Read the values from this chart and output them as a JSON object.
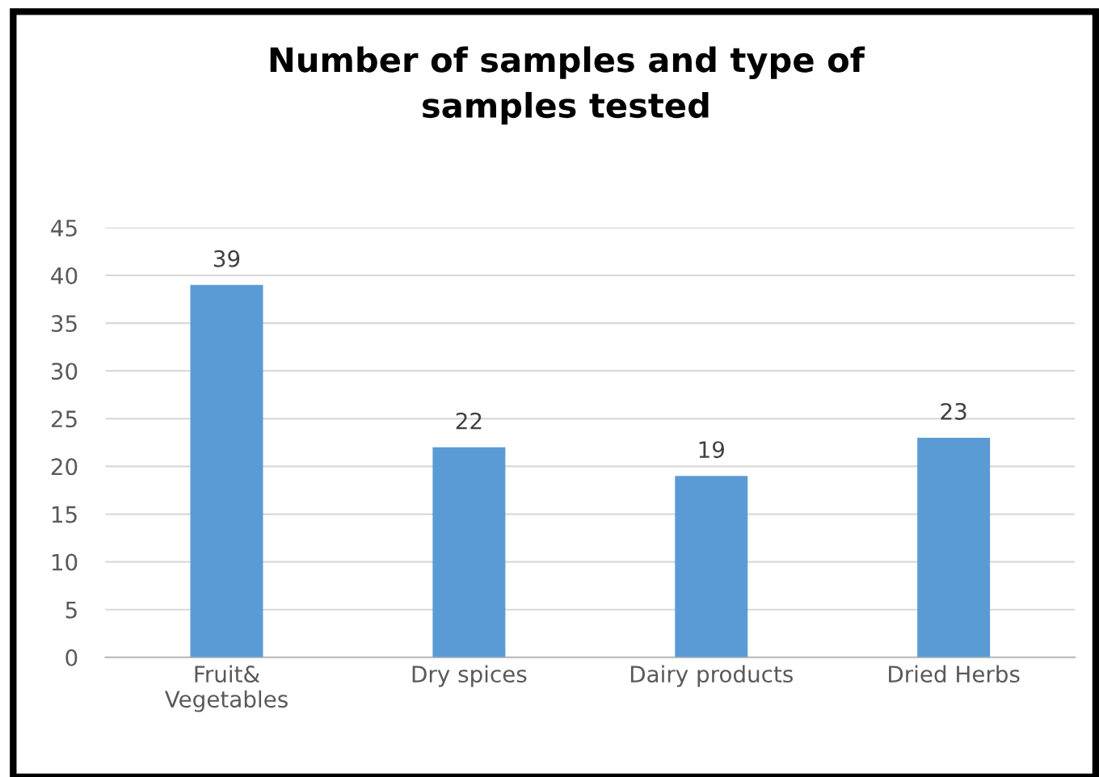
{
  "chart_data": {
    "type": "bar",
    "title": "Number of samples and type of\nsamples tested",
    "categories": [
      "Fruit&\nVegetables",
      "Dry spices",
      "Dairy products",
      "Dried Herbs"
    ],
    "values": [
      39,
      22,
      19,
      23
    ],
    "color": "#5b9bd5",
    "ylim": [
      0,
      45
    ],
    "yticks": [
      0,
      5,
      10,
      15,
      20,
      25,
      30,
      35,
      40,
      45
    ],
    "grid": "y",
    "data_labels": true
  }
}
